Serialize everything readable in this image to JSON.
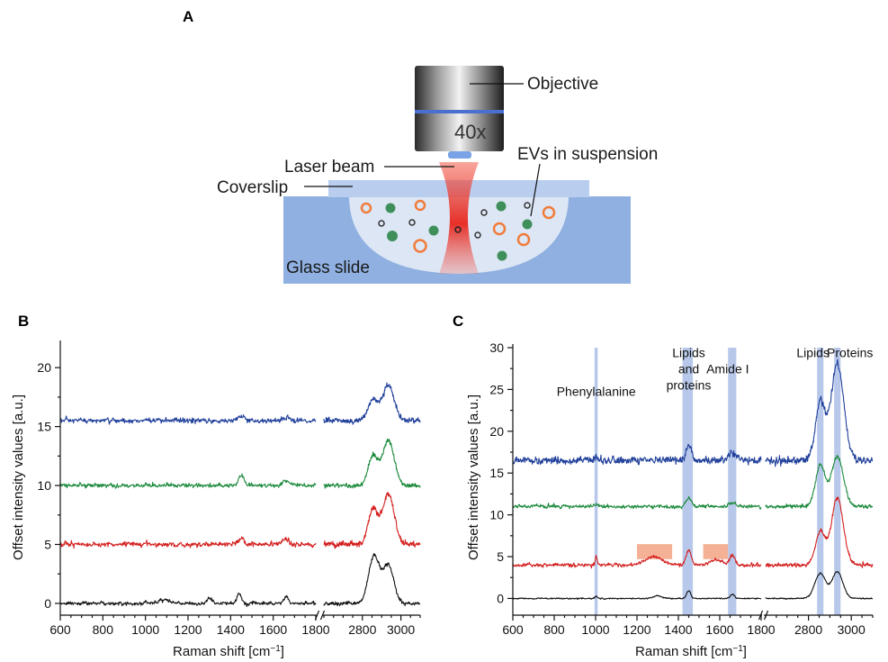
{
  "schematic": {
    "panel_label": "A",
    "labels": {
      "objective": "Objective",
      "magnification": "40x",
      "laser": "Laser beam",
      "coverslip": "Coverslip",
      "evs": "EVs in suspension",
      "slide": "Glass slide"
    },
    "colors": {
      "glass": "#8fb0e0",
      "suspension": "#dde6f5",
      "laser": "#e8261e",
      "ev_green": "#3f8f5a",
      "ev_orange": "#f07c3c"
    }
  },
  "chart_data": [
    {
      "panel_label": "B",
      "type": "line",
      "xlabel": "Raman shift [cm",
      "xlabel_sup": "−1",
      "xlabel_end": "]",
      "ylabel": "Offset intensity values [a.u.]",
      "ylim": [
        -1,
        22
      ],
      "yticks": [
        0,
        5,
        10,
        15,
        20
      ],
      "x_segments": [
        {
          "range": [
            600,
            1800
          ],
          "ticks": [
            600,
            800,
            1000,
            1200,
            1400,
            1600,
            1800
          ]
        },
        {
          "range": [
            2600,
            3100
          ],
          "ticks": [
            2800,
            3000
          ]
        }
      ],
      "axis_break": true,
      "series": [
        {
          "color": "#1f3f9a",
          "offset": 15.5,
          "noise": 0.15,
          "peaks": [
            [
              1003,
              0.15,
              5
            ],
            [
              1450,
              0.4,
              14
            ],
            [
              1660,
              0.3,
              18
            ],
            [
              2855,
              1.8,
              25
            ],
            [
              2935,
              3.0,
              30
            ]
          ]
        },
        {
          "color": "#1c8a3c",
          "offset": 10.0,
          "noise": 0.12,
          "peaks": [
            [
              1003,
              0.15,
              5
            ],
            [
              1450,
              0.9,
              12
            ],
            [
              1660,
              0.4,
              16
            ],
            [
              2855,
              2.5,
              25
            ],
            [
              2935,
              3.8,
              30
            ]
          ]
        },
        {
          "color": "#d42020",
          "offset": 5.0,
          "noise": 0.15,
          "peaks": [
            [
              1003,
              0.2,
              5
            ],
            [
              1450,
              0.6,
              12
            ],
            [
              1660,
              0.4,
              16
            ],
            [
              2855,
              3.0,
              25
            ],
            [
              2935,
              4.3,
              30
            ]
          ]
        },
        {
          "color": "#111111",
          "offset": 0.0,
          "noise": 0.1,
          "peaks": [
            [
              1003,
              0.15,
              5
            ],
            [
              1090,
              0.3,
              25
            ],
            [
              1300,
              0.4,
              12
            ],
            [
              1440,
              0.9,
              10
            ],
            [
              1660,
              0.6,
              10
            ],
            [
              2860,
              4.0,
              28
            ],
            [
              2935,
              3.2,
              28
            ]
          ]
        }
      ]
    },
    {
      "panel_label": "C",
      "type": "line",
      "xlabel": "Raman shift [cm",
      "xlabel_sup": "−1",
      "xlabel_end": "]",
      "ylabel": "Offset intensity values [a.u.]",
      "ylim": [
        -2,
        30
      ],
      "yticks": [
        0,
        5,
        10,
        15,
        20,
        25,
        30
      ],
      "x_segments": [
        {
          "range": [
            600,
            1800
          ],
          "ticks": [
            600,
            800,
            1000,
            1200,
            1400,
            1600,
            1800
          ]
        },
        {
          "range": [
            2600,
            3100
          ],
          "ticks": [
            2800,
            3000
          ]
        }
      ],
      "axis_break": true,
      "bands": [
        {
          "x1": 995,
          "x2": 1010
        },
        {
          "x1": 1420,
          "x2": 1470
        },
        {
          "x1": 1640,
          "x2": 1680
        },
        {
          "x1": 2840,
          "x2": 2870
        },
        {
          "x1": 2920,
          "x2": 2950
        }
      ],
      "band_color": "#9fb5e3",
      "highlights": [
        {
          "x1": 1200,
          "x2": 1370,
          "y1": 4.7,
          "y2": 6.5
        },
        {
          "x1": 1520,
          "x2": 1640,
          "y1": 4.7,
          "y2": 6.5
        }
      ],
      "highlight_color": "#f4a98a",
      "annotations": [
        {
          "lines": [
            "Phenylalanine"
          ],
          "x": 1003,
          "y": 29.5
        },
        {
          "lines": [
            "Lipids",
            "and",
            "proteins"
          ],
          "x": 1450,
          "y": 29.5
        },
        {
          "lines": [
            "Amide I"
          ],
          "x": 1660,
          "y": 29.5
        },
        {
          "lines": [
            "Lipids"
          ],
          "x": 2855,
          "y": 29.5
        },
        {
          "lines": [
            "Proteins"
          ],
          "x": 2935,
          "y": 29.5
        }
      ],
      "series": [
        {
          "color": "#1f3f9a",
          "offset": 16.5,
          "noise": 0.3,
          "peaks": [
            [
              1003,
              0.6,
              5
            ],
            [
              1450,
              1.8,
              14
            ],
            [
              1660,
              1.0,
              16
            ],
            [
              2855,
              7.0,
              22
            ],
            [
              2935,
              11.5,
              30
            ]
          ]
        },
        {
          "color": "#1c8a3c",
          "offset": 11.0,
          "noise": 0.15,
          "peaks": [
            [
              1003,
              0.3,
              5
            ],
            [
              1450,
              1.0,
              12
            ],
            [
              1660,
              0.5,
              14
            ],
            [
              2855,
              5.0,
              22
            ],
            [
              2935,
              6.0,
              28
            ]
          ]
        },
        {
          "color": "#d42020",
          "offset": 4.0,
          "noise": 0.15,
          "peaks": [
            [
              1003,
              1.0,
              5
            ],
            [
              1280,
              1.0,
              40
            ],
            [
              1450,
              1.8,
              12
            ],
            [
              1580,
              0.6,
              30
            ],
            [
              1660,
              1.2,
              12
            ],
            [
              2855,
              4.0,
              22
            ],
            [
              2935,
              8.0,
              28
            ]
          ]
        },
        {
          "color": "#111111",
          "offset": 0.0,
          "noise": 0.05,
          "peaks": [
            [
              1003,
              0.3,
              5
            ],
            [
              1300,
              0.3,
              20
            ],
            [
              1450,
              0.9,
              10
            ],
            [
              1660,
              0.5,
              10
            ],
            [
              2855,
              3.0,
              25
            ],
            [
              2935,
              3.2,
              25
            ]
          ]
        }
      ]
    }
  ]
}
